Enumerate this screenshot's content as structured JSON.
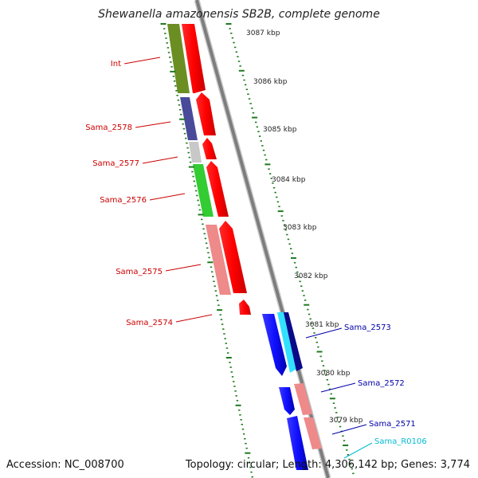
{
  "title": "Shewanella amazonensis SB2B, complete genome",
  "footer": {
    "accession": "Accession: NC_008700",
    "summary": "Topology: circular; Length: 4,306,142 bp; Genes: 3,774"
  },
  "colors": {
    "backbone": "#8a8a8a",
    "tick": "#1f7a1f",
    "cds_forward": "#ff0000",
    "cds_reverse": "#1a1aff",
    "label_forward": "#cc0000",
    "label_reverse": "#0000aa",
    "label_rna": "#00bcd4"
  },
  "scale_labels": [
    "3087 kbp",
    "3086 kbp",
    "3085 kbp",
    "3084 kbp",
    "3083 kbp",
    "3082 kbp",
    "3081 kbp",
    "3080 kbp",
    "3079 kbp"
  ],
  "gene_labels": {
    "int": "Int",
    "sama_2578": "Sama_2578",
    "sama_2577": "Sama_2577",
    "sama_2576": "Sama_2576",
    "sama_2575": "Sama_2575",
    "sama_2574": "Sama_2574",
    "sama_2573": "Sama_2573",
    "sama_2572": "Sama_2572",
    "sama_2571": "Sama_2571",
    "sama_r0106": "Sama_R0106"
  }
}
